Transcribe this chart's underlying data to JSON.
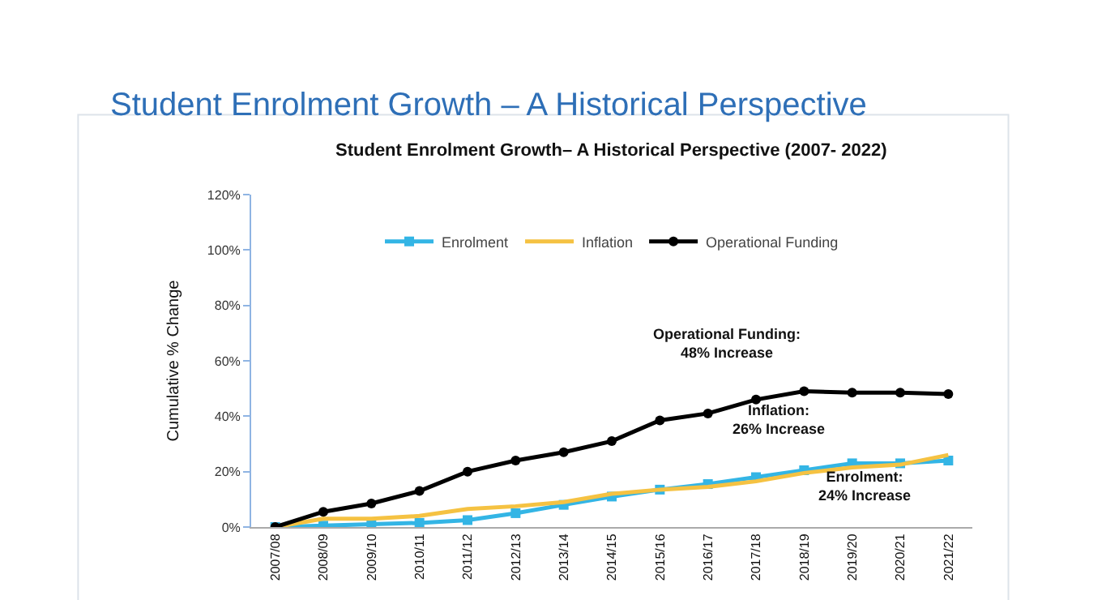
{
  "chart_data": {
    "type": "line",
    "title": "Student Enrolment Growth – A Historical Perspective",
    "subtitle": "Student Enrolment Growth– A Historical Perspective (2007- 2022)",
    "ylabel": "Cumulative % Change",
    "categories": [
      "2007/08",
      "2008/09",
      "2009/10",
      "2010/11",
      "2011/12",
      "2012/13",
      "2013/14",
      "2014/15",
      "2015/16",
      "2016/17",
      "2017/18",
      "2018/19",
      "2019/20",
      "2020/21",
      "2021/22"
    ],
    "series": [
      {
        "name": "Enrolment",
        "color": "#33b5e5",
        "marker": "square",
        "values": [
          0,
          0.5,
          1,
          1.5,
          2.5,
          5,
          8,
          11,
          13.5,
          15.5,
          18,
          20.5,
          23,
          23,
          24
        ]
      },
      {
        "name": "Inflation",
        "color": "#f5c242",
        "marker": "none",
        "values": [
          0,
          3,
          3,
          4,
          6.5,
          7.5,
          9,
          12,
          13.5,
          14.5,
          16.5,
          19.5,
          21.5,
          22.5,
          26
        ]
      },
      {
        "name": "Operational Funding",
        "color": "#000000",
        "marker": "circle",
        "values": [
          0,
          5.5,
          8.5,
          13,
          20,
          24,
          27,
          31,
          38.5,
          41,
          46,
          49,
          48.5,
          48.5,
          48
        ]
      }
    ],
    "ylim": [
      0,
      120
    ],
    "yticks": [
      {
        "value": 0,
        "label": "0%"
      },
      {
        "value": 20,
        "label": "20%"
      },
      {
        "value": 40,
        "label": "40%"
      },
      {
        "value": 60,
        "label": "60%"
      },
      {
        "value": 80,
        "label": "80%"
      },
      {
        "value": 100,
        "label": "100%"
      },
      {
        "value": 120,
        "label": "120%"
      }
    ],
    "annotations": [
      "Operational Funding:\n48% Increase",
      "Inflation:\n26% Increase",
      "Enrolment:\n24% Increase"
    ],
    "legend": "top",
    "line_style": "solid"
  }
}
